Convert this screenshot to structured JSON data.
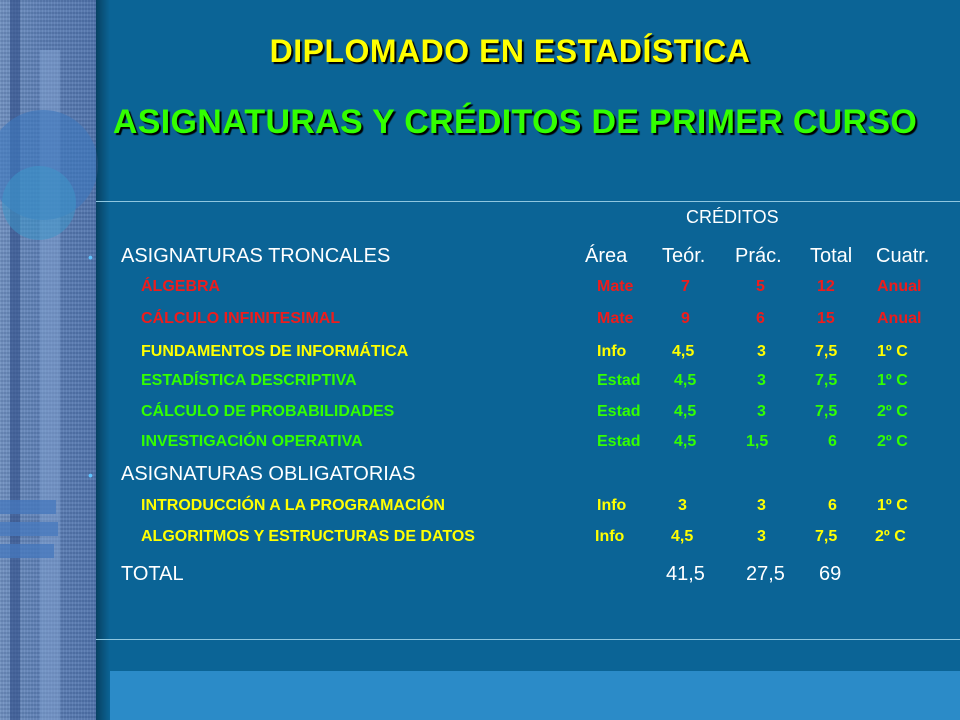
{
  "title": "DIPLOMADO EN ESTADÍSTICA",
  "subtitle": "ASIGNATURAS Y CRÉDITOS DE PRIMER CURSO",
  "credits_label": "CRÉDITOS",
  "troncales": {
    "heading": "ASIGNATURAS TRONCALES",
    "columns": [
      "Área",
      "Teór.",
      "Prác.",
      "Total",
      "Cuatr."
    ],
    "rows": [
      {
        "name": "ÁLGEBRA",
        "area": "Mate",
        "teor": "7",
        "prac": "5",
        "total": "12",
        "cuatr": "Anual"
      },
      {
        "name": "CÁLCULO INFINITESIMAL",
        "area": "Mate",
        "teor": "9",
        "prac": "6",
        "total": "15",
        "cuatr": "Anual"
      },
      {
        "name": "FUNDAMENTOS DE INFORMÁTICA",
        "area": "Info",
        "teor": "4,5",
        "prac": "3",
        "total": "7,5",
        "cuatr": "1º C"
      },
      {
        "name": "ESTADÍSTICA DESCRIPTIVA",
        "area": "Estad",
        "teor": "4,5",
        "prac": "3",
        "total": "7,5",
        "cuatr": "1º C"
      },
      {
        "name": "CÁLCULO DE PROBABILIDADES",
        "area": "Estad",
        "teor": "4,5",
        "prac": "3",
        "total": "7,5",
        "cuatr": "2º C"
      },
      {
        "name": "INVESTIGACIÓN OPERATIVA",
        "area": "Estad",
        "teor": "4,5",
        "prac": "1,5",
        "total": "6",
        "cuatr": "2º C"
      }
    ]
  },
  "obligatorias": {
    "heading": "ASIGNATURAS OBLIGATORIAS",
    "rows": [
      {
        "name": "INTRODUCCIÓN A LA PROGRAMACIÓN",
        "area": "Info",
        "teor": "3",
        "prac": "3",
        "total": "6",
        "cuatr": "1º C"
      },
      {
        "name": "ALGORITMOS Y ESTRUCTURAS DE DATOS",
        "area": "Info",
        "teor": "4,5",
        "prac": "3",
        "total": "7,5",
        "cuatr": "2º C"
      }
    ]
  },
  "total": {
    "label": "TOTAL",
    "teor": "41,5",
    "prac": "27,5",
    "total": "69"
  },
  "colors": {
    "background": "#0b6496",
    "title": "#ffff00",
    "subtitle": "#33ff00",
    "troncales_red": "#ee1c1c",
    "troncales_green": "#33ff00",
    "obligatorias": "#ffff00"
  }
}
